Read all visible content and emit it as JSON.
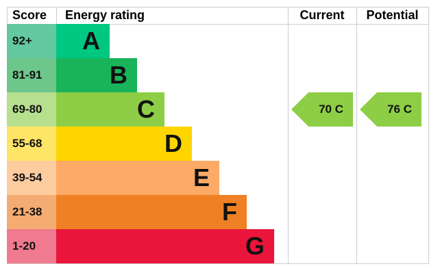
{
  "chart_data": {
    "type": "bar",
    "headers": {
      "score": "Score",
      "rating": "Energy rating",
      "current": "Current",
      "potential": "Potential"
    },
    "bands": [
      {
        "score": "92+",
        "letter": "A",
        "color": "#00c781",
        "score_color": "#64c8a0"
      },
      {
        "score": "81-91",
        "letter": "B",
        "color": "#19b459",
        "score_color": "#6dc68a"
      },
      {
        "score": "69-80",
        "letter": "C",
        "color": "#8dce46",
        "score_color": "#b6df8e"
      },
      {
        "score": "55-68",
        "letter": "D",
        "color": "#ffd500",
        "score_color": "#ffe566"
      },
      {
        "score": "39-54",
        "letter": "E",
        "color": "#fcaa65",
        "score_color": "#fdcc9f"
      },
      {
        "score": "21-38",
        "letter": "F",
        "color": "#ef8023",
        "score_color": "#f5ac72"
      },
      {
        "score": "1-20",
        "letter": "G",
        "color": "#e9153b",
        "score_color": "#f07a8f"
      }
    ],
    "current": {
      "value": 70,
      "letter": "C",
      "label": "70  C",
      "color": "#8dce46"
    },
    "potential": {
      "value": 76,
      "letter": "C",
      "label": "76  C",
      "color": "#8dce46"
    }
  }
}
